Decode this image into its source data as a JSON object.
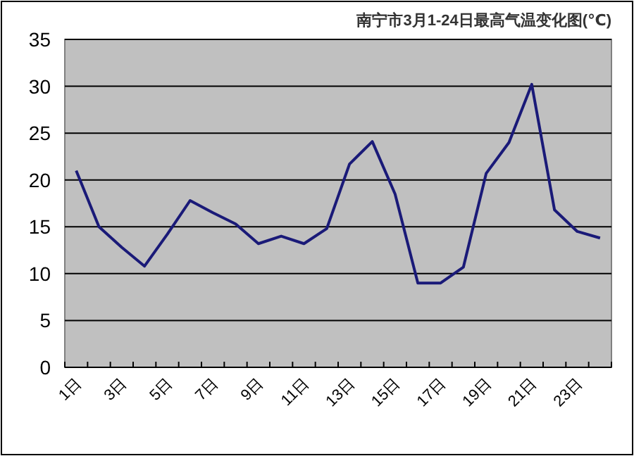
{
  "chart_data": {
    "type": "line",
    "title": "南宁市3月1-24日最高气温变化图(℃)",
    "categories": [
      "1日",
      null,
      "3日",
      null,
      "5日",
      null,
      "7日",
      null,
      "9日",
      null,
      "11日",
      null,
      "13日",
      null,
      "15日",
      null,
      "17日",
      null,
      "19日",
      null,
      "21日",
      null,
      "23日",
      null
    ],
    "values": [
      21,
      15,
      12.8,
      10.8,
      14.2,
      17.8,
      16.5,
      15.3,
      13.2,
      14,
      13.2,
      14.8,
      21.7,
      24.1,
      18.5,
      9,
      9,
      10.7,
      20.7,
      24,
      30.2,
      16.8,
      14.5,
      13.8
    ],
    "color": "#1a1a78",
    "ylim": [
      0,
      35
    ],
    "yticks": [
      0,
      5,
      10,
      15,
      20,
      25,
      30,
      35
    ],
    "grid": "y"
  }
}
